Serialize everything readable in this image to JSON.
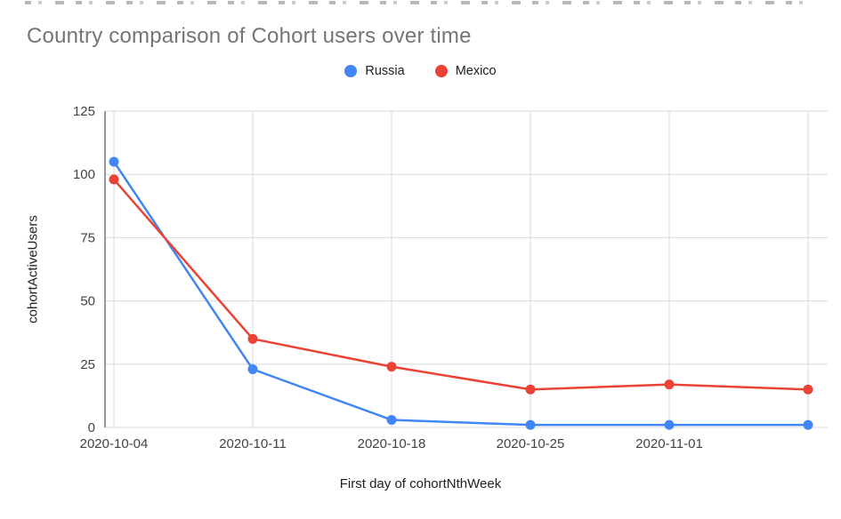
{
  "chart_data": {
    "type": "line",
    "title": "Country comparison of Cohort users over time",
    "xlabel": "First day of cohortNthWeek",
    "ylabel": "cohortActiveUsers",
    "categories": [
      "2020-10-04",
      "2020-10-11",
      "2020-10-18",
      "2020-10-25",
      "2020-11-01",
      ""
    ],
    "series": [
      {
        "name": "Russia",
        "color": "#4285F4",
        "values": [
          105,
          23,
          3,
          1,
          1,
          1
        ]
      },
      {
        "name": "Mexico",
        "color": "#EA4335",
        "values": [
          98,
          35,
          24,
          15,
          17,
          15
        ]
      }
    ],
    "y_ticks": [
      0,
      25,
      50,
      75,
      100,
      125
    ],
    "ylim": [
      0,
      125
    ],
    "grid": true,
    "legend_position": "top-center",
    "gridline_color": "#d9d9d9",
    "axis_text_color": "#424242",
    "title_color": "#757575"
  }
}
